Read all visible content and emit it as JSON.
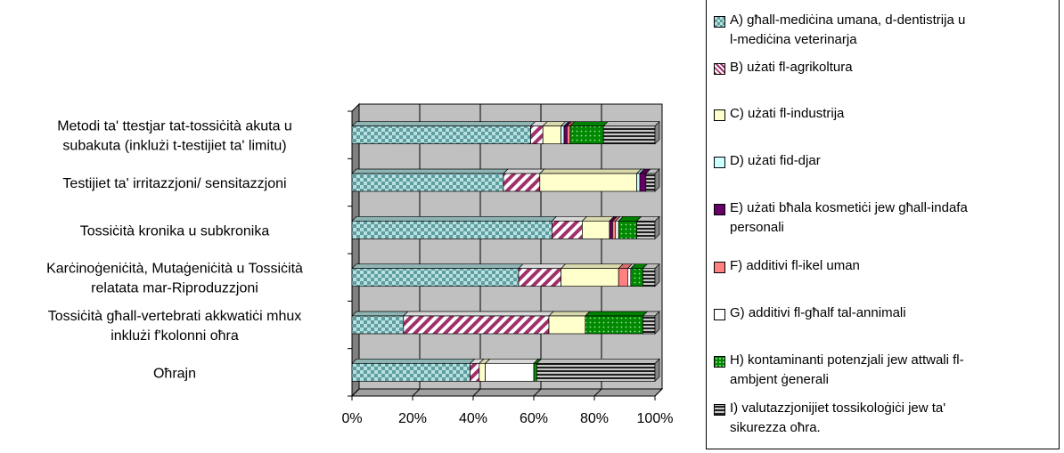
{
  "chart_data": {
    "type": "bar",
    "orientation": "horizontal",
    "stacked": "percent",
    "title": "",
    "xlim": [
      0,
      100
    ],
    "x_ticks": [
      "0%",
      "20%",
      "40%",
      "60%",
      "80%",
      "100%"
    ],
    "grid": true,
    "legend_position": "right",
    "categories": [
      [
        "Metodi ta' ttestjar tat-tossiċità akuta u",
        "subakuta (inklużi t-testijiet ta' limitu)"
      ],
      [
        "Testijiet ta' irritazzjoni/ sensitazzjoni"
      ],
      [
        "Tossiċità kronika u subkronika"
      ],
      [
        "Karċinoġeniċità, Mutaġeniċità u Tossiċità",
        "relatata mar-Riproduzzjoni"
      ],
      [
        "Tossiċità għall-vertebrati akkwatiċi mhux",
        "inklużi f'kolonni oħra"
      ],
      [
        "Oħrajn"
      ]
    ],
    "series": [
      {
        "name": [
          "A) għall-mediċina umana, d-dentistrija u",
          "l-mediċina veterinarja"
        ],
        "color": "#a8d4d4",
        "pattern": "checker",
        "values": [
          59,
          50,
          66,
          55,
          17,
          39
        ]
      },
      {
        "name": [
          "B) użati fl-agrikoltura"
        ],
        "color": "#ffffff",
        "pattern": "diag",
        "values": [
          4,
          12,
          10,
          14,
          48,
          3
        ]
      },
      {
        "name": [
          "C) użati fl-industrija"
        ],
        "color": "#ffffcc",
        "pattern": "solid",
        "values": [
          6,
          32,
          9,
          19,
          12,
          2
        ]
      },
      {
        "name": [
          "D) użati fid-djar"
        ],
        "color": "#ccffff",
        "pattern": "solid",
        "values": [
          1,
          1,
          0,
          0,
          0,
          0
        ]
      },
      {
        "name": [
          "E) użati bħala kosmetiċi jew għall-indafa",
          "personali"
        ],
        "color": "#660066",
        "pattern": "solid",
        "values": [
          1,
          2,
          1,
          0,
          0,
          0
        ]
      },
      {
        "name": [
          "F) additivi fl-ikel uman"
        ],
        "color": "#ff8080",
        "pattern": "solid",
        "values": [
          1,
          0,
          1,
          3,
          0,
          0
        ]
      },
      {
        "name": [
          "G) additivi fl-għalf tal-annimali"
        ],
        "color": "#ffffff",
        "pattern": "solid",
        "values": [
          0,
          0,
          1,
          1,
          0,
          16
        ]
      },
      {
        "name": [
          "H) kontaminanti potenzjali jew attwali fl-",
          "ambjent ġenerali"
        ],
        "color": "#009900",
        "pattern": "dots",
        "values": [
          11,
          0,
          6,
          4,
          19,
          1
        ]
      },
      {
        "name": [
          "I)  valutazzjonijiet tossikoloġiċi jew ta'",
          "sikurezza oħra."
        ],
        "color": "#e0e0e0",
        "pattern": "hlines",
        "values": [
          17,
          3,
          6,
          4,
          4,
          39
        ]
      }
    ]
  }
}
